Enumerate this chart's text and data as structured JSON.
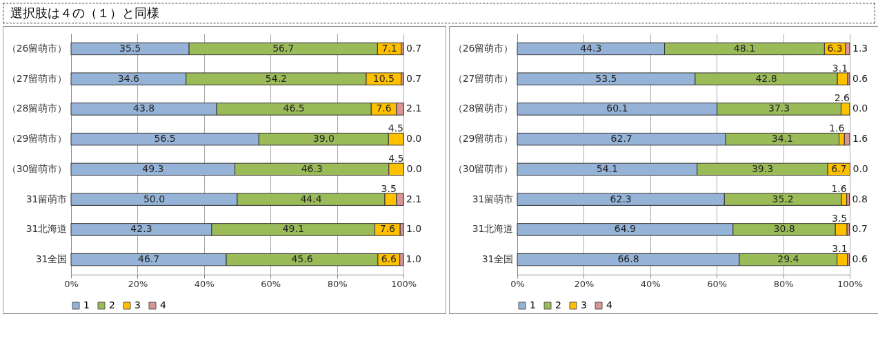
{
  "chart_data": [
    {
      "type": "bar",
      "orientation": "horizontal",
      "stacked": true,
      "grid": "x",
      "legend": "bottom",
      "annotations": [
        "選択肢は４の（１）と同様"
      ],
      "categories": [
        "（26留萌市）",
        "（27留萌市）",
        "（28留萌市）",
        "（29留萌市）",
        "（30留萌市）",
        "31留萌市",
        "31北海道",
        "31全国"
      ],
      "xlim": [
        0,
        100
      ],
      "xticks": [
        {
          "value": 0,
          "label": "0%"
        },
        {
          "value": 20,
          "label": "20%"
        },
        {
          "value": 40,
          "label": "40%"
        },
        {
          "value": 60,
          "label": "60%"
        },
        {
          "value": 80,
          "label": "80%"
        },
        {
          "value": 100,
          "label": "100%"
        }
      ],
      "series": [
        {
          "name": "1",
          "color": "#95b3d7",
          "values": [
            35.5,
            34.6,
            43.8,
            56.5,
            49.3,
            50.0,
            42.3,
            46.7
          ],
          "value_labels": [
            "35.5",
            "34.6",
            "43.8",
            "56.5",
            "49.3",
            "50.0",
            "42.3",
            "46.7"
          ]
        },
        {
          "name": "2",
          "color": "#9bbb59",
          "values": [
            56.7,
            54.2,
            46.5,
            39.0,
            46.3,
            44.4,
            49.1,
            45.6
          ],
          "value_labels": [
            "56.7",
            "54.2",
            "46.5",
            "39.0",
            "46.3",
            "44.4",
            "49.1",
            "45.6"
          ]
        },
        {
          "name": "3",
          "color": "#ffc000",
          "values": [
            7.1,
            10.5,
            7.6,
            4.5,
            4.5,
            3.5,
            7.6,
            6.6
          ],
          "value_labels": [
            "7.1",
            "10.5",
            "7.6",
            "4.5",
            "4.5",
            "3.5",
            "7.6",
            "6.6"
          ]
        },
        {
          "name": "4",
          "color": "#d99694",
          "values": [
            0.7,
            0.7,
            2.1,
            0.0,
            0.0,
            2.1,
            1.0,
            1.0
          ],
          "value_labels": [
            "0.7",
            "0.7",
            "2.1",
            "0.0",
            "0.0",
            "2.1",
            "1.0",
            "1.0"
          ]
        }
      ]
    },
    {
      "type": "bar",
      "orientation": "horizontal",
      "stacked": true,
      "grid": "x",
      "legend": "bottom",
      "categories": [
        "（26留萌市）",
        "（27留萌市）",
        "（28留萌市）",
        "（29留萌市）",
        "（30留萌市）",
        "31留萌市",
        "31北海道",
        "31全国"
      ],
      "xlim": [
        0,
        100
      ],
      "xticks": [
        {
          "value": 0,
          "label": "0%"
        },
        {
          "value": 20,
          "label": "20%"
        },
        {
          "value": 40,
          "label": "40%"
        },
        {
          "value": 60,
          "label": "60%"
        },
        {
          "value": 80,
          "label": "80%"
        },
        {
          "value": 100,
          "label": "100%"
        }
      ],
      "series": [
        {
          "name": "1",
          "color": "#95b3d7",
          "values": [
            44.3,
            53.5,
            60.1,
            62.7,
            54.1,
            62.3,
            64.9,
            66.8
          ],
          "value_labels": [
            "44.3",
            "53.5",
            "60.1",
            "62.7",
            "54.1",
            "62.3",
            "64.9",
            "66.8"
          ]
        },
        {
          "name": "2",
          "color": "#9bbb59",
          "values": [
            48.1,
            42.8,
            37.3,
            34.1,
            39.3,
            35.2,
            30.8,
            29.4
          ],
          "value_labels": [
            "48.1",
            "42.8",
            "37.3",
            "34.1",
            "39.3",
            "35.2",
            "30.8",
            "29.4"
          ]
        },
        {
          "name": "3",
          "color": "#ffc000",
          "values": [
            6.3,
            3.1,
            2.6,
            1.6,
            6.7,
            1.6,
            3.5,
            3.1
          ],
          "value_labels": [
            "6.3",
            "3.1",
            "2.6",
            "1.6",
            "6.7",
            "1.6",
            "3.5",
            "3.1"
          ]
        },
        {
          "name": "4",
          "color": "#d99694",
          "values": [
            1.3,
            0.6,
            0.0,
            1.6,
            0.0,
            0.8,
            0.7,
            0.6
          ],
          "value_labels": [
            "1.3",
            "0.6",
            "0.0",
            "1.6",
            "0.0",
            "0.8",
            "0.7",
            "0.6"
          ]
        }
      ]
    }
  ]
}
